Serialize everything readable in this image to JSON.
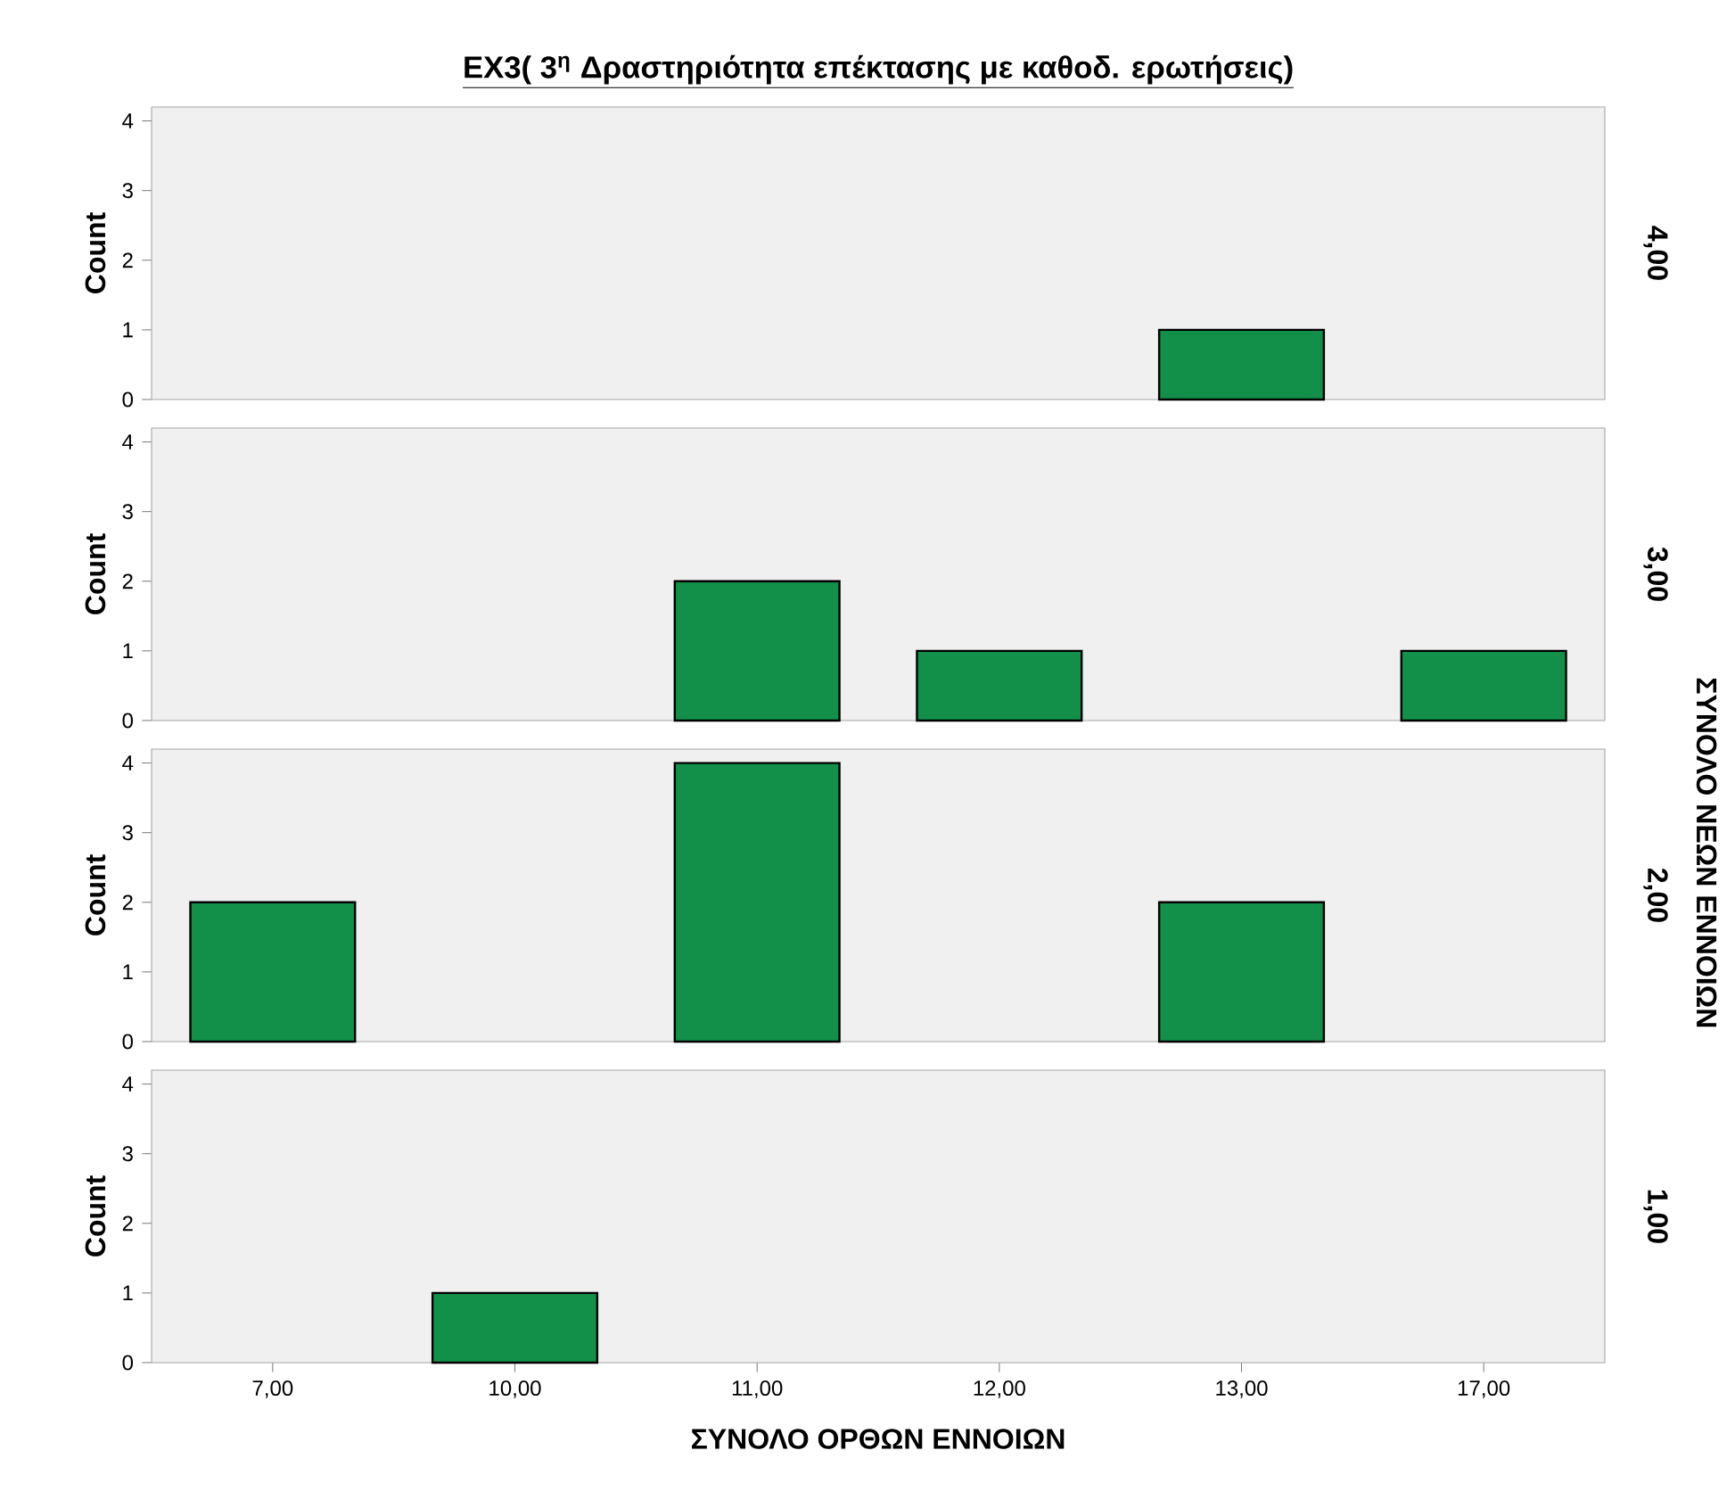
{
  "chart_data": [
    {
      "type": "bar",
      "title": "EX3( 3$^{η}$ Δραστηριότητα επέκτασης με καθοδ. ερωτήσεις)",
      "ylabel": "Count",
      "y2label": "4,00",
      "annotations": [
        "ΣΥΝΟΛΟ ΝΕΩΝ ΕΝΝΟΙΩΝ"
      ],
      "categories": [
        "7,00",
        "10,00",
        "11,00",
        "12,00",
        "13,00",
        "17,00"
      ],
      "values": [
        null,
        null,
        null,
        null,
        1,
        null
      ],
      "color": "#12904a",
      "ylim": [
        0,
        4.2
      ],
      "yticks": [
        0,
        1,
        2,
        3,
        4
      ],
      "tick_labels": "y"
    },
    {
      "type": "bar",
      "ylabel": "Count",
      "y2label": "3,00",
      "categories": [
        "7,00",
        "10,00",
        "11,00",
        "12,00",
        "13,00",
        "17,00"
      ],
      "values": [
        null,
        null,
        2,
        1,
        null,
        1
      ],
      "color": "#12904a",
      "ylim": [
        0,
        4.2
      ],
      "yticks": [
        0,
        1,
        2,
        3,
        4
      ],
      "tick_labels": "y"
    },
    {
      "type": "bar",
      "ylabel": "Count",
      "y2label": "2,00",
      "categories": [
        "7,00",
        "10,00",
        "11,00",
        "12,00",
        "13,00",
        "17,00"
      ],
      "values": [
        2,
        null,
        4,
        null,
        2,
        null
      ],
      "color": "#12904a",
      "ylim": [
        0,
        4.2
      ],
      "yticks": [
        0,
        1,
        2,
        3,
        4
      ],
      "tick_labels": "y"
    },
    {
      "type": "bar",
      "xlabel": "ΣΥΝΟΛΟ ΟΡΘΩΝ ΕΝΝΟΙΩΝ",
      "ylabel": "Count",
      "y2label": "1,00",
      "categories": [
        "7,00",
        "10,00",
        "11,00",
        "12,00",
        "13,00",
        "17,00"
      ],
      "values": [
        null,
        1,
        null,
        null,
        null,
        null
      ],
      "color": "#12904a",
      "ylim": [
        0,
        4.2
      ],
      "yticks": [
        0,
        1,
        2,
        3,
        4
      ]
    }
  ]
}
